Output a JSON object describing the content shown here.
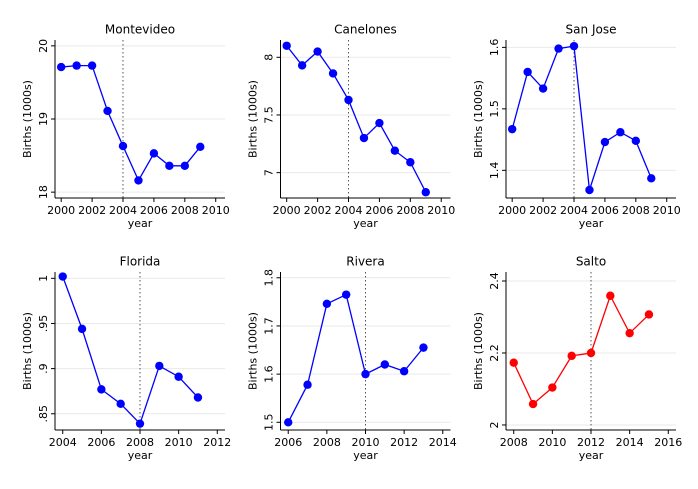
{
  "chart_data": [
    {
      "type": "line",
      "title": "Montevideo",
      "x_label": "year",
      "y_label": "Births (1000s)",
      "color": "#0000ff",
      "x": [
        2000,
        2001,
        2002,
        2003,
        2004,
        2005,
        2006,
        2007,
        2008,
        2009
      ],
      "values": [
        19.71,
        19.73,
        19.73,
        19.11,
        18.63,
        18.16,
        18.53,
        18.36,
        18.36,
        18.62
      ],
      "xlim": [
        1999.6,
        2010.6
      ],
      "xticks": [
        2000,
        2002,
        2004,
        2006,
        2008,
        2010
      ],
      "ylim": [
        17.92,
        20.08
      ],
      "yticks": [
        18,
        19,
        20
      ],
      "vline": 2004,
      "grid": true
    },
    {
      "type": "line",
      "title": "Canelones",
      "x_label": "year",
      "y_label": "Births (1000s)",
      "color": "#0000ff",
      "x": [
        2000,
        2001,
        2002,
        2003,
        2004,
        2005,
        2006,
        2007,
        2008,
        2009
      ],
      "values": [
        8.1,
        7.93,
        8.05,
        7.86,
        7.63,
        7.3,
        7.43,
        7.19,
        7.09,
        6.83
      ],
      "xlim": [
        1999.6,
        2010.6
      ],
      "xticks": [
        2000,
        2002,
        2004,
        2006,
        2008,
        2010
      ],
      "ylim": [
        6.78,
        8.15
      ],
      "yticks": [
        7,
        7.5,
        8
      ],
      "vline": 2004,
      "grid": true
    },
    {
      "type": "line",
      "title": "San Jose",
      "x_label": "year",
      "y_label": "Births (1000s)",
      "color": "#0000ff",
      "x": [
        2000,
        2001,
        2002,
        2003,
        2004,
        2005,
        2006,
        2007,
        2008,
        2009
      ],
      "values": [
        1.467,
        1.56,
        1.533,
        1.598,
        1.602,
        1.368,
        1.446,
        1.462,
        1.448,
        1.387
      ],
      "xlim": [
        1999.6,
        2010.6
      ],
      "xticks": [
        2000,
        2002,
        2004,
        2006,
        2008,
        2010
      ],
      "ylim": [
        1.355,
        1.612
      ],
      "yticks": [
        1.4,
        1.5,
        1.6
      ],
      "vline": 2004,
      "grid": true
    },
    {
      "type": "line",
      "title": "Florida",
      "x_label": "year",
      "y_label": "Births (1000s)",
      "color": "#0000ff",
      "x": [
        2004,
        2005,
        2006,
        2007,
        2008,
        2009,
        2010,
        2011
      ],
      "values": [
        1.002,
        0.944,
        0.877,
        0.861,
        0.839,
        0.903,
        0.891,
        0.868
      ],
      "xlim": [
        2003.6,
        2012.4
      ],
      "xticks": [
        2004,
        2006,
        2008,
        2010,
        2012
      ],
      "ylim": [
        0.832,
        1.007
      ],
      "yticks": [
        {
          "value": 0.85,
          "label": ".85"
        },
        {
          "value": 0.9,
          "label": ".9"
        },
        {
          "value": 0.95,
          "label": ".95"
        },
        1
      ],
      "vline": 2008,
      "grid": true
    },
    {
      "type": "line",
      "title": "Rivera",
      "x_label": "year",
      "y_label": "Births (1000s)",
      "color": "#0000ff",
      "x": [
        2006,
        2007,
        2008,
        2009,
        2010,
        2011,
        2012,
        2013
      ],
      "values": [
        1.5,
        1.578,
        1.746,
        1.765,
        1.6,
        1.62,
        1.606,
        1.655
      ],
      "xlim": [
        2005.6,
        2014.4
      ],
      "xticks": [
        2006,
        2008,
        2010,
        2012,
        2014
      ],
      "ylim": [
        1.484,
        1.812
      ],
      "yticks": [
        1.5,
        1.6,
        1.7,
        1.8
      ],
      "vline": 2010,
      "grid": true
    },
    {
      "type": "line",
      "title": "Salto",
      "x_label": "year",
      "y_label": "Births (1000s)",
      "color": "#ff0000",
      "x": [
        2008,
        2009,
        2010,
        2011,
        2012,
        2013,
        2014,
        2015
      ],
      "values": [
        2.173,
        2.058,
        2.104,
        2.192,
        2.2,
        2.359,
        2.255,
        2.307
      ],
      "xlim": [
        2007.6,
        2016.4
      ],
      "xticks": [
        2008,
        2010,
        2012,
        2014,
        2016
      ],
      "ylim": [
        1.986,
        2.425
      ],
      "yticks": [
        2,
        2.2,
        2.4
      ],
      "vline": 2012,
      "grid": true
    }
  ]
}
